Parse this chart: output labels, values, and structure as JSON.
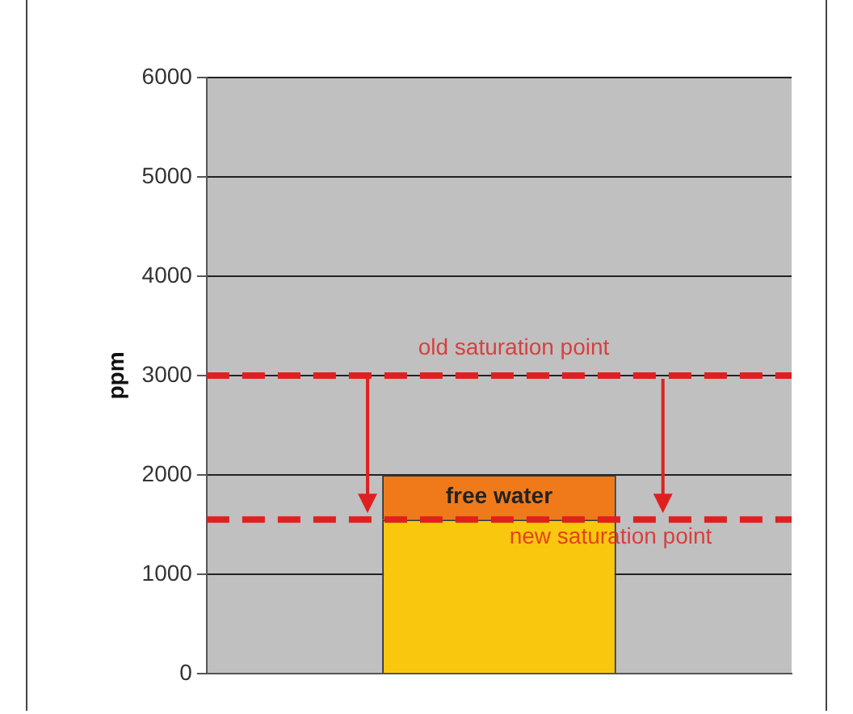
{
  "chart_data": {
    "type": "bar",
    "ylabel": "ppm",
    "categories": [
      null
    ],
    "stacked": true,
    "series": [
      {
        "color": "#f9c80e",
        "values": [
          1550
        ]
      },
      {
        "color": "#f07a1a",
        "values": [
          450
        ]
      }
    ],
    "ylim": [
      0,
      6000
    ],
    "yticks": [
      0,
      1000,
      2000,
      3000,
      4000,
      5000,
      6000
    ],
    "grid": "y",
    "legend": false,
    "tick_labels": "y",
    "ref_lines": [
      {
        "axis": "y",
        "value": 3000,
        "label": "old saturation point",
        "color": "#e02020",
        "line_style": "dashed"
      },
      {
        "axis": "y",
        "value": 1550,
        "label": "new saturation point",
        "color": "#e02020",
        "line_style": "dashed"
      }
    ],
    "annotations": [
      "free water"
    ]
  }
}
